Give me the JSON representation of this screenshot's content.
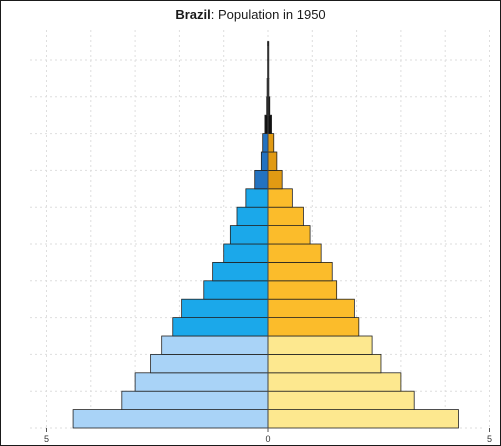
{
  "chart_data": {
    "type": "bar",
    "title": {
      "country": "Brazil",
      "rest": ": Population in 1950"
    },
    "xlabel": "",
    "ylabel": "",
    "x_tick_labels": [
      "5",
      "0",
      "5"
    ],
    "x_tick_values": [
      -5,
      0,
      5
    ],
    "xlim": [
      -5.4,
      5.4
    ],
    "orientation": "horizontal",
    "grid": true,
    "legend": "none",
    "age_groups": 21,
    "series": [
      {
        "side": "left",
        "values": [
          4.4,
          3.3,
          3.0,
          2.65,
          2.4,
          2.15,
          1.95,
          1.45,
          1.25,
          1.0,
          0.85,
          0.7,
          0.5,
          0.3,
          0.15,
          0.12,
          0.07,
          0.03,
          0.02,
          0.01,
          0.01
        ]
      },
      {
        "side": "right",
        "values": [
          4.3,
          3.3,
          3.0,
          2.55,
          2.35,
          2.05,
          1.95,
          1.55,
          1.45,
          1.2,
          0.95,
          0.8,
          0.55,
          0.32,
          0.2,
          0.13,
          0.08,
          0.04,
          0.02,
          0.01,
          0.01
        ]
      }
    ],
    "colors": {
      "left_young": "#a9d3f7",
      "left_working": "#1ba8ea",
      "left_old": "#2372c0",
      "right_young": "#fde88f",
      "right_working": "#fbbc2b",
      "right_old": "#e19a13",
      "oldest": "#111111",
      "bar_outline": "#222222",
      "grid": "#dedede"
    }
  }
}
